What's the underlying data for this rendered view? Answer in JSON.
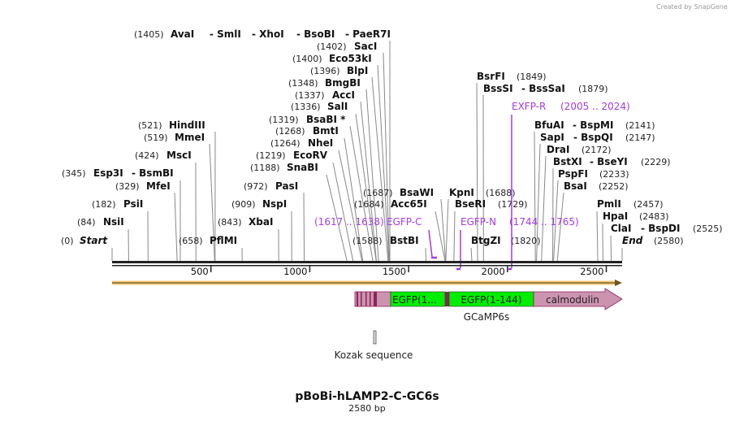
{
  "watermark": "Created by SnapGene",
  "title": "pBoBi-hLAMP2-C-GC6s",
  "length_label": "2580 bp",
  "sequence_length": 2580,
  "colors": {
    "primer": "#a23ce6",
    "orf": "#f6b94e",
    "gfp": "#00ee00",
    "calmodulin": "#cc93b1",
    "dark_segment": "#8c2458"
  },
  "axis_ticks": [
    500,
    1000,
    1500,
    2000,
    2500
  ],
  "enzymes": [
    {
      "names": [
        "AvaI",
        "- SmlI",
        "- XhoI",
        "- BsoBI",
        "- PaeR7I"
      ],
      "pos": 1405,
      "pos_label": "(1405)"
    },
    {
      "names": [
        "SacI"
      ],
      "pos": 1402,
      "pos_label": "(1402)"
    },
    {
      "names": [
        "Eco53kI"
      ],
      "pos": 1400,
      "pos_label": "(1400)"
    },
    {
      "names": [
        "BlpI"
      ],
      "pos": 1396,
      "pos_label": "(1396)"
    },
    {
      "names": [
        "BmgBI"
      ],
      "pos": 1348,
      "pos_label": "(1348)"
    },
    {
      "names": [
        "AccI"
      ],
      "pos": 1337,
      "pos_label": "(1337)"
    },
    {
      "names": [
        "SalI"
      ],
      "pos": 1336,
      "pos_label": "(1336)"
    },
    {
      "names": [
        "BsaBI *"
      ],
      "pos": 1319,
      "pos_label": "(1319)"
    },
    {
      "names": [
        "BmtI"
      ],
      "pos": 1268,
      "pos_label": "(1268)"
    },
    {
      "names": [
        "NheI"
      ],
      "pos": 1264,
      "pos_label": "(1264)"
    },
    {
      "names": [
        "EcoRV"
      ],
      "pos": 1219,
      "pos_label": "(1219)"
    },
    {
      "names": [
        "SnaBI"
      ],
      "pos": 1188,
      "pos_label": "(1188)"
    },
    {
      "names": [
        "PasI"
      ],
      "pos": 972,
      "pos_label": "(972)"
    },
    {
      "names": [
        "NspI"
      ],
      "pos": 909,
      "pos_label": "(909)"
    },
    {
      "names": [
        "XbaI"
      ],
      "pos": 843,
      "pos_label": "(843)"
    },
    {
      "names": [
        "PflMI"
      ],
      "pos": 658,
      "pos_label": "(658)"
    },
    {
      "names": [
        "HindIII"
      ],
      "pos": 521,
      "pos_label": "(521)"
    },
    {
      "names": [
        "MmeI"
      ],
      "pos": 519,
      "pos_label": "(519)"
    },
    {
      "names": [
        "MscI"
      ],
      "pos": 424,
      "pos_label": "(424)"
    },
    {
      "names": [
        "Esp3I",
        "- BsmBI"
      ],
      "pos": 345,
      "pos_label": "(345)"
    },
    {
      "names": [
        "MfeI"
      ],
      "pos": 329,
      "pos_label": "(329)"
    },
    {
      "names": [
        "PsiI"
      ],
      "pos": 182,
      "pos_label": "(182)"
    },
    {
      "names": [
        "NsiI"
      ],
      "pos": 84,
      "pos_label": "(84)"
    },
    {
      "names": [
        "Start"
      ],
      "pos": 0,
      "pos_label": "(0)"
    },
    {
      "names": [
        "BsaWI"
      ],
      "pos": 1687,
      "pos_label": "(1687)"
    },
    {
      "names": [
        "Acc65I"
      ],
      "pos": 1684,
      "pos_label": "(1684)"
    },
    {
      "names": [
        "BstBI"
      ],
      "pos": 1588,
      "pos_label": "(1588)"
    },
    {
      "names": [
        "KpnI"
      ],
      "pos": 1688,
      "pos_label": "(1688)"
    },
    {
      "names": [
        "BseRI"
      ],
      "pos": 1729,
      "pos_label": "(1729)"
    },
    {
      "names": [
        "BtgZI"
      ],
      "pos": 1820,
      "pos_label": "(1820)"
    },
    {
      "names": [
        "BsrFI"
      ],
      "pos": 1849,
      "pos_label": "(1849)"
    },
    {
      "names": [
        "BssSI",
        "- BssSaI"
      ],
      "pos": 1879,
      "pos_label": "(1879)"
    },
    {
      "names": [
        "BfuAI",
        "- BspMI"
      ],
      "pos": 2141,
      "pos_label": "(2141)"
    },
    {
      "names": [
        "SapI",
        "- BspQI"
      ],
      "pos": 2147,
      "pos_label": "(2147)"
    },
    {
      "names": [
        "DraI"
      ],
      "pos": 2172,
      "pos_label": "(2172)"
    },
    {
      "names": [
        "BstXI",
        "- BseYI"
      ],
      "pos": 2229,
      "pos_label": "(2229)"
    },
    {
      "names": [
        "PspFI"
      ],
      "pos": 2233,
      "pos_label": "(2233)"
    },
    {
      "names": [
        "BsaI"
      ],
      "pos": 2252,
      "pos_label": "(2252)"
    },
    {
      "names": [
        "PmlI"
      ],
      "pos": 2457,
      "pos_label": "(2457)"
    },
    {
      "names": [
        "HpaI"
      ],
      "pos": 2483,
      "pos_label": "(2483)"
    },
    {
      "names": [
        "ClaI",
        "- BspDI"
      ],
      "pos": 2525,
      "pos_label": "(2525)"
    },
    {
      "names": [
        "End"
      ],
      "pos": 2580,
      "pos_label": "(2580)"
    }
  ],
  "primers": [
    {
      "name": "EGFP-C",
      "range_label": "(1617 .. 1638)",
      "start": 1617,
      "end": 1638,
      "direction": "forward"
    },
    {
      "name": "EGFP-N",
      "range_label": "(1744 .. 1765)",
      "start": 1744,
      "end": 1765,
      "direction": "reverse"
    },
    {
      "name": "EXFP-R",
      "range_label": "(2005 .. 2024)",
      "start": 2005,
      "end": 2024,
      "direction": "reverse"
    }
  ],
  "features": {
    "gcamp": {
      "name": "GCaMP6s",
      "segments": [
        "EGFP(1...",
        "EGFP(1-144)",
        "calmodulin"
      ]
    },
    "kozak": {
      "name": "Kozak sequence"
    }
  }
}
